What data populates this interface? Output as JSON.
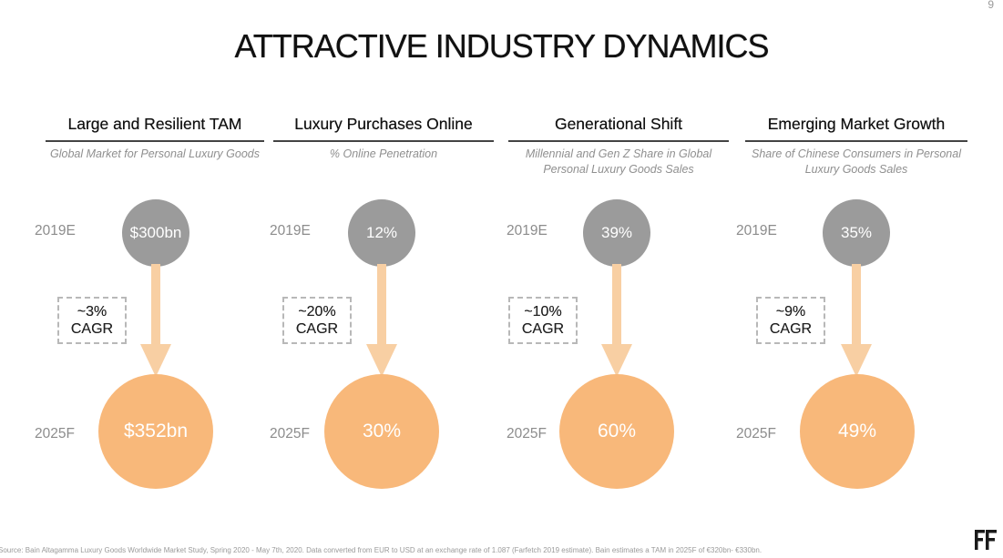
{
  "page_number": "9",
  "title": "ATTRACTIVE INDUSTRY DYNAMICS",
  "columns": [
    {
      "title": "Large and Resilient TAM",
      "subtitle": "Global Market for Personal Luxury Goods",
      "year_top": "2019E",
      "value_top": "$300bn",
      "cagr_value": "~3%",
      "cagr_label": "CAGR",
      "year_bottom": "2025F",
      "value_bottom": "$352bn"
    },
    {
      "title": "Luxury Purchases Online",
      "subtitle": "% Online Penetration",
      "year_top": "2019E",
      "value_top": "12%",
      "cagr_value": "~20%",
      "cagr_label": "CAGR",
      "year_bottom": "2025F",
      "value_bottom": "30%"
    },
    {
      "title": "Generational Shift",
      "subtitle": "Millennial and Gen Z Share in Global Personal Luxury Goods Sales",
      "year_top": "2019E",
      "value_top": "39%",
      "cagr_value": "~10%",
      "cagr_label": "CAGR",
      "year_bottom": "2025F",
      "value_bottom": "60%"
    },
    {
      "title": "Emerging Market Growth",
      "subtitle": "Share of Chinese Consumers in Personal Luxury Goods Sales",
      "year_top": "2019E",
      "value_top": "35%",
      "cagr_value": "~9%",
      "cagr_label": "CAGR",
      "year_bottom": "2025F",
      "value_bottom": "49%"
    }
  ],
  "source": "Source: Bain Altagamma Luxury Goods Worldwide Market Study, Spring 2020 - May 7th, 2020. Data converted from EUR to USD at an exchange rate of 1.087 (Farfetch 2019 estimate). Bain estimates a TAM in 2025F of €320bn- €330bn.",
  "logo_name": "farfetch-logo",
  "colors": {
    "top_circle": "#9b9b9b",
    "bottom_circle": "#f8b87a",
    "arrow": "#f8cfa3"
  }
}
